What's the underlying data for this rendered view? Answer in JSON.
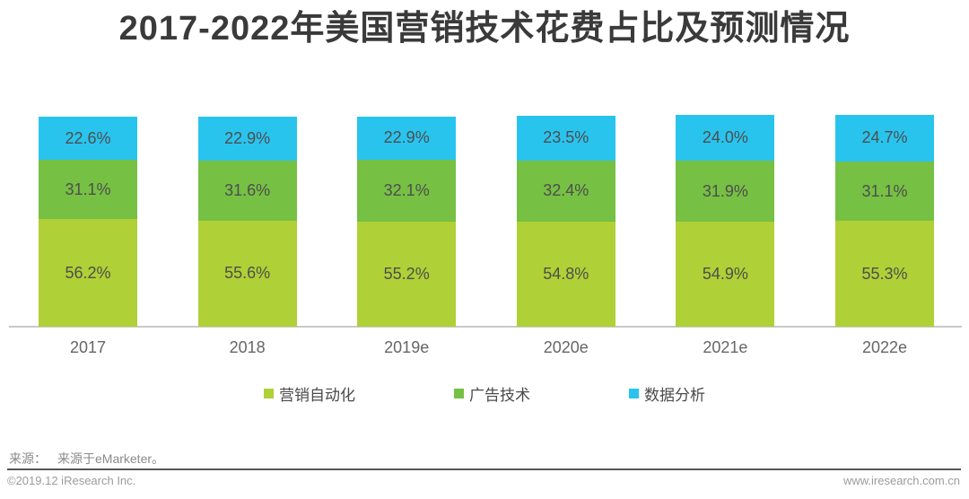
{
  "title": "2017-2022年美国营销技术花费占比及预测情况",
  "chart_data": {
    "type": "bar",
    "stacked": true,
    "title": "2017-2022年美国营销技术花费占比及预测情况",
    "categories": [
      "2017",
      "2018",
      "2019e",
      "2020e",
      "2021e",
      "2022e"
    ],
    "series": [
      {
        "name": "营销自动化",
        "color": "#AFD036",
        "values": [
          56.2,
          55.6,
          55.2,
          54.8,
          54.9,
          55.3
        ]
      },
      {
        "name": "广告技术",
        "color": "#76C043",
        "values": [
          31.1,
          31.6,
          32.1,
          32.4,
          31.9,
          31.1
        ]
      },
      {
        "name": "数据分析",
        "color": "#29C4EE",
        "values": [
          22.6,
          22.9,
          22.9,
          23.5,
          24.0,
          24.7
        ]
      }
    ],
    "value_suffix": "%",
    "value_decimals": 1,
    "legend_position": "bottom",
    "grid": false,
    "xlabel": "",
    "ylabel": "",
    "ylim": [
      0,
      120
    ]
  },
  "footer": {
    "source_label": "来源：",
    "source_text": "来源于eMarketer。",
    "copyright": "©2019.12 iResearch Inc.",
    "website": "www.iresearch.com.cn"
  }
}
